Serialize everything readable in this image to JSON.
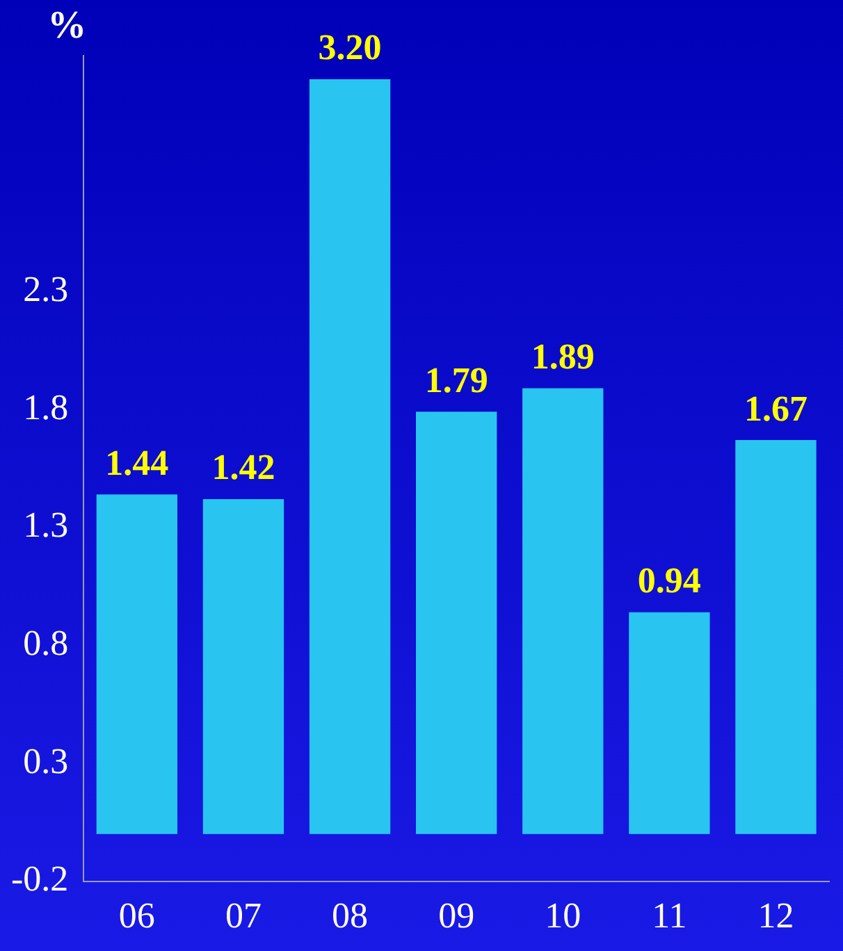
{
  "chart_data": {
    "type": "bar",
    "ylabel": "%",
    "categories": [
      "06",
      "07",
      "08",
      "09",
      "10",
      "11",
      "12"
    ],
    "values": [
      1.44,
      1.42,
      3.2,
      1.79,
      1.89,
      0.94,
      1.67
    ],
    "color": "#29c4f0",
    "ylim": [
      -0.2,
      3.3
    ],
    "yticks": [
      -0.2,
      0.3,
      0.8,
      1.3,
      1.8,
      2.3
    ],
    "value_labels": [
      "1.44",
      "1.42",
      "3.20",
      "1.79",
      "1.89",
      "0.94",
      "1.67"
    ],
    "grid": false,
    "legend": false
  }
}
